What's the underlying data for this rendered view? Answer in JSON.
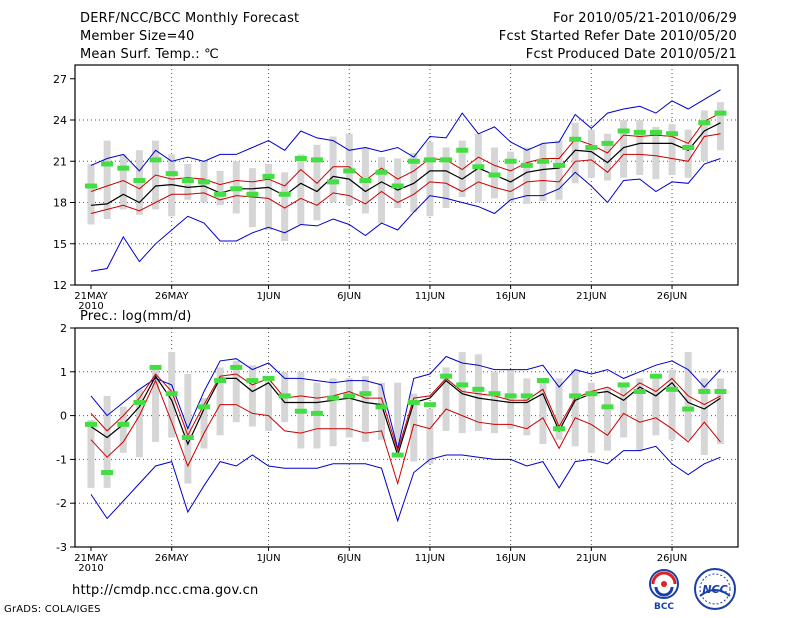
{
  "header": {
    "title": "DERF/NCC/BCC Monthly Forecast",
    "member_size": "Member Size=40",
    "variable": "Mean Surf. Temp.: ℃",
    "period": "For 2010/05/21-2010/06/29",
    "started": "Fcst Started Refer Date 2010/05/20",
    "produced": "Fcst Produced Date 2010/05/21"
  },
  "footer": {
    "url": "http://cmdp.ncc.cma.gov.cn",
    "grads": "GrADS: COLA/IGES"
  },
  "logos": {
    "bcc": "BCC",
    "ncc": "NCC"
  },
  "colors": {
    "bar": "#d6d6d6",
    "mean": "#000000",
    "inner": "#cc0000",
    "outer": "#0000cc",
    "marker": "#44dd44",
    "grid": "#555555"
  },
  "chart_data": [
    {
      "type": "line",
      "title": "Mean Surf. Temp.: ℃",
      "ylim": [
        12,
        28
      ],
      "yticks": [
        "12",
        "15",
        "18",
        "21",
        "24",
        "27"
      ],
      "xticks": [
        "21MAY",
        "26MAY",
        "1JUN",
        "6JUN",
        "11JUN",
        "16JUN",
        "21JUN",
        "26JUN"
      ],
      "xtick_index": [
        0,
        5,
        11,
        16,
        21,
        26,
        31,
        36
      ],
      "year_label": "2010",
      "series": [
        {
          "name": "bar_low",
          "values": [
            16.4,
            16.8,
            17.5,
            17.1,
            17.5,
            17.0,
            18.2,
            18.0,
            17.8,
            17.2,
            16.2,
            16.0,
            15.2,
            16.4,
            16.7,
            18.0,
            17.8,
            17.2,
            16.5,
            17.6,
            17.3,
            17.0,
            17.6,
            18.4,
            18.0,
            18.3,
            18.0,
            17.9,
            18.1,
            18.2,
            19.4,
            19.8,
            19.6,
            19.8,
            20.0,
            19.7,
            20.0,
            19.8,
            21.0,
            21.8
          ]
        },
        {
          "name": "bar_high",
          "values": [
            20.8,
            22.5,
            21.5,
            21.8,
            22.5,
            21.5,
            20.8,
            21.0,
            20.3,
            21.0,
            20.5,
            20.8,
            20.2,
            21.5,
            22.2,
            22.8,
            23.0,
            22.0,
            21.3,
            21.2,
            21.6,
            22.4,
            22.0,
            22.5,
            23.0,
            22.0,
            21.7,
            22.0,
            22.3,
            22.5,
            23.8,
            23.3,
            23.0,
            24.0,
            24.0,
            23.5,
            23.7,
            23.3,
            24.7,
            25.3
          ]
        },
        {
          "name": "outer_low",
          "values": [
            13.0,
            13.2,
            15.5,
            13.7,
            15.0,
            16.0,
            17.0,
            16.5,
            15.2,
            15.2,
            15.8,
            16.2,
            15.8,
            16.4,
            16.3,
            16.8,
            16.4,
            15.6,
            16.5,
            16.0,
            17.3,
            18.5,
            18.3,
            18.0,
            17.7,
            17.2,
            18.2,
            18.5,
            18.5,
            19.0,
            20.2,
            19.2,
            18.0,
            19.6,
            19.7,
            18.8,
            19.5,
            19.4,
            20.8,
            21.2
          ]
        },
        {
          "name": "inner_low",
          "values": [
            17.2,
            17.5,
            17.8,
            17.4,
            18.0,
            18.6,
            18.6,
            18.7,
            18.2,
            18.5,
            18.4,
            18.3,
            17.6,
            18.3,
            17.8,
            18.7,
            18.5,
            17.9,
            18.8,
            18.0,
            18.6,
            19.5,
            19.4,
            18.8,
            19.5,
            19.1,
            18.8,
            19.5,
            19.6,
            19.5,
            21.0,
            21.1,
            20.2,
            21.5,
            21.5,
            21.4,
            21.2,
            21.0,
            22.8,
            23.0
          ]
        },
        {
          "name": "mean",
          "values": [
            17.8,
            17.9,
            18.6,
            18.0,
            19.2,
            19.3,
            19.1,
            19.2,
            18.7,
            19.0,
            19.0,
            19.1,
            18.5,
            19.4,
            18.8,
            19.9,
            19.7,
            18.8,
            19.5,
            18.9,
            19.4,
            20.3,
            20.3,
            19.7,
            20.5,
            20.0,
            19.5,
            20.2,
            20.4,
            20.5,
            21.8,
            21.7,
            20.9,
            22.0,
            22.3,
            22.3,
            22.3,
            21.8,
            23.2,
            23.8
          ]
        },
        {
          "name": "inner_high",
          "values": [
            18.8,
            19.2,
            19.6,
            19.0,
            20.0,
            19.7,
            19.8,
            19.7,
            19.3,
            19.6,
            19.5,
            19.7,
            19.2,
            20.4,
            19.4,
            20.6,
            20.6,
            19.6,
            20.5,
            19.7,
            20.3,
            21.2,
            21.1,
            20.4,
            21.3,
            20.7,
            20.3,
            20.9,
            21.2,
            21.2,
            22.6,
            22.2,
            21.6,
            22.9,
            22.8,
            22.9,
            22.8,
            22.3,
            23.9,
            24.5
          ]
        },
        {
          "name": "outer_high",
          "values": [
            20.7,
            21.2,
            21.5,
            20.3,
            21.8,
            21.0,
            21.3,
            21.0,
            21.5,
            21.5,
            22.0,
            22.5,
            21.8,
            23.2,
            22.7,
            22.5,
            21.8,
            22.0,
            21.7,
            22.0,
            21.3,
            22.8,
            22.7,
            24.5,
            23.0,
            23.5,
            22.4,
            21.8,
            22.3,
            22.4,
            24.4,
            23.4,
            24.5,
            24.8,
            25.0,
            24.5,
            25.4,
            24.8,
            25.5,
            26.2
          ]
        },
        {
          "name": "control",
          "values": [
            19.2,
            20.8,
            20.5,
            19.6,
            21.1,
            20.1,
            19.6,
            19.5,
            18.6,
            19.0,
            18.6,
            19.9,
            18.6,
            21.2,
            21.1,
            19.5,
            20.3,
            19.6,
            20.2,
            19.2,
            21.0,
            21.1,
            21.1,
            21.8,
            20.6,
            20.0,
            21.0,
            20.7,
            21.0,
            20.7,
            22.6,
            22.0,
            22.3,
            23.2,
            23.1,
            23.1,
            23.0,
            22.0,
            23.8,
            24.5
          ]
        }
      ]
    },
    {
      "type": "line",
      "title": "Prec.: log(mm/d)",
      "ylim": [
        -3,
        2
      ],
      "yticks": [
        "-3",
        "-2",
        "-1",
        "0",
        "1",
        "2"
      ],
      "xticks": [
        "21MAY",
        "26MAY",
        "1JUN",
        "6JUN",
        "11JUN",
        "16JUN",
        "21JUN",
        "26JUN"
      ],
      "xtick_index": [
        0,
        5,
        11,
        16,
        21,
        26,
        31,
        36
      ],
      "year_label": "2010",
      "series": [
        {
          "name": "bar_low",
          "values": [
            -1.65,
            -1.65,
            -0.85,
            -0.95,
            -0.6,
            -0.5,
            -1.55,
            -0.75,
            -0.45,
            -0.15,
            -0.25,
            -0.35,
            -0.15,
            -0.75,
            -0.75,
            -0.7,
            -0.5,
            -0.6,
            -0.55,
            -0.65,
            -1.05,
            -1.1,
            -0.35,
            -0.4,
            -0.35,
            -0.4,
            -0.3,
            -0.45,
            -0.65,
            -0.55,
            -0.7,
            -0.85,
            -0.8,
            -0.5,
            -0.8,
            -0.45,
            -0.55,
            -0.55,
            -0.9,
            -0.65
          ]
        },
        {
          "name": "bar_high",
          "values": [
            -0.1,
            0.45,
            0.2,
            0.6,
            1.05,
            1.45,
            0.95,
            0.4,
            1.1,
            1.25,
            1.15,
            0.9,
            1.0,
            1.0,
            0.75,
            0.85,
            0.85,
            0.9,
            0.75,
            0.75,
            0.5,
            0.15,
            1.1,
            1.45,
            1.4,
            1.0,
            1.05,
            0.85,
            0.85,
            0.85,
            1.05,
            0.75,
            0.65,
            0.65,
            0.85,
            0.95,
            1.05,
            1.45,
            0.85,
            0.85
          ]
        },
        {
          "name": "outer_low",
          "values": [
            -1.8,
            -2.35,
            -1.95,
            -1.55,
            -1.15,
            -1.05,
            -2.2,
            -1.6,
            -1.05,
            -1.15,
            -0.9,
            -1.15,
            -1.2,
            -1.2,
            -1.2,
            -1.1,
            -1.1,
            -1.1,
            -1.2,
            -2.4,
            -1.3,
            -1.0,
            -0.9,
            -0.9,
            -0.95,
            -1.0,
            -1.0,
            -1.15,
            -1.05,
            -1.65,
            -1.05,
            -1.0,
            -1.1,
            -0.8,
            -0.8,
            -0.7,
            -1.1,
            -1.35,
            -1.1,
            -0.95
          ]
        },
        {
          "name": "inner_low",
          "values": [
            -0.55,
            -0.95,
            -0.6,
            0.0,
            0.8,
            -0.15,
            -1.15,
            -0.4,
            0.25,
            0.25,
            0.05,
            0.0,
            -0.35,
            -0.4,
            -0.3,
            -0.3,
            -0.3,
            -0.4,
            -0.35,
            -1.55,
            -0.2,
            -0.3,
            0.15,
            0.0,
            -0.15,
            -0.2,
            -0.2,
            -0.3,
            -0.05,
            -0.75,
            -0.05,
            -0.2,
            -0.45,
            0.05,
            -0.15,
            -0.05,
            -0.3,
            -0.6,
            -0.15,
            -0.6
          ]
        },
        {
          "name": "mean",
          "values": [
            -0.25,
            -0.5,
            -0.2,
            0.2,
            0.9,
            0.35,
            -0.65,
            0.15,
            0.85,
            0.85,
            0.55,
            0.75,
            0.3,
            0.3,
            0.3,
            0.35,
            0.4,
            0.3,
            0.25,
            -0.9,
            0.3,
            0.4,
            0.8,
            0.5,
            0.4,
            0.35,
            0.3,
            0.3,
            0.5,
            -0.35,
            0.35,
            0.5,
            0.55,
            0.35,
            0.65,
            0.45,
            0.75,
            0.3,
            0.15,
            0.4
          ]
        },
        {
          "name": "inner_high",
          "values": [
            0.05,
            -0.35,
            0.0,
            0.4,
            0.95,
            0.55,
            -0.45,
            0.25,
            0.9,
            0.95,
            0.7,
            0.85,
            0.4,
            0.45,
            0.4,
            0.45,
            0.55,
            0.4,
            0.4,
            -0.8,
            0.4,
            0.45,
            0.85,
            0.55,
            0.5,
            0.45,
            0.35,
            0.35,
            0.6,
            -0.25,
            0.4,
            0.55,
            0.65,
            0.45,
            0.75,
            0.55,
            0.85,
            0.45,
            0.25,
            0.45
          ]
        },
        {
          "name": "outer_high",
          "values": [
            0.45,
            0.0,
            0.3,
            0.6,
            0.85,
            0.7,
            -0.3,
            0.55,
            1.25,
            1.3,
            1.05,
            1.2,
            0.85,
            0.85,
            0.8,
            0.75,
            0.8,
            0.8,
            0.7,
            -0.75,
            0.85,
            0.95,
            1.35,
            1.2,
            1.15,
            1.05,
            1.05,
            1.05,
            1.15,
            0.65,
            1.05,
            0.95,
            1.05,
            0.85,
            1.0,
            1.15,
            1.25,
            1.05,
            0.65,
            1.05
          ]
        },
        {
          "name": "control",
          "values": [
            -0.2,
            -1.3,
            -0.2,
            0.3,
            1.1,
            0.5,
            -0.5,
            0.2,
            0.8,
            1.1,
            0.8,
            0.85,
            0.45,
            0.1,
            0.05,
            0.4,
            0.45,
            0.5,
            0.2,
            -0.9,
            0.3,
            0.25,
            0.9,
            0.7,
            0.6,
            0.5,
            0.45,
            0.45,
            0.8,
            -0.3,
            0.45,
            0.5,
            0.2,
            0.7,
            0.55,
            0.9,
            0.6,
            0.15,
            0.55,
            0.55
          ]
        }
      ]
    }
  ]
}
